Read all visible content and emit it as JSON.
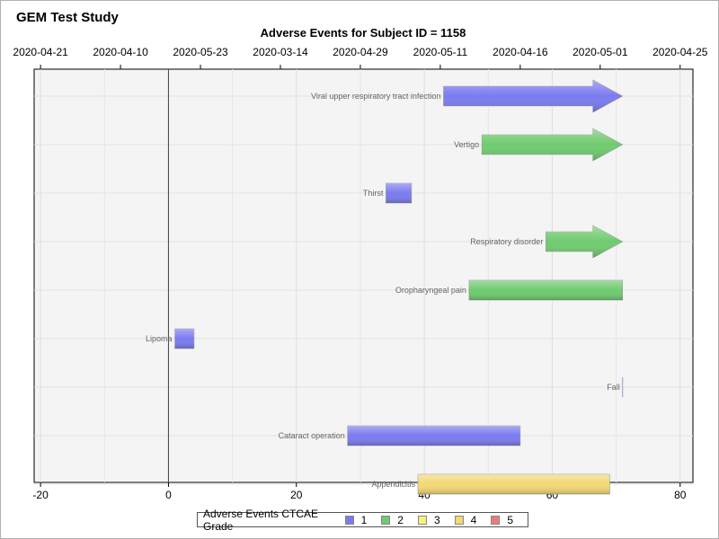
{
  "page": {
    "study_title": "GEM Test Study"
  },
  "chart_data": {
    "type": "bar",
    "title": "Adverse Events for Subject ID = 1158",
    "x_bottom_ticks": [
      -20,
      0,
      20,
      40,
      60,
      80
    ],
    "x_top_labels": [
      "2020-04-21",
      "2020-04-10",
      "2020-05-23",
      "2020-03-14",
      "2020-04-29",
      "2020-05-11",
      "2020-04-16",
      "2020-05-01",
      "2020-04-25"
    ],
    "xlim": [
      -21,
      82
    ],
    "reference_line_x": 0,
    "grid": true,
    "colors": {
      "1": "#7b7bf0",
      "2": "#6fcb6f",
      "3": "#f7f27a",
      "4": "#f3d873",
      "5": "#ef7a7a"
    },
    "events": [
      {
        "label": "Viral upper respiratory tract infection",
        "start": 43,
        "end": 71,
        "grade": 1,
        "ongoing": true
      },
      {
        "label": "Vertigo",
        "start": 49,
        "end": 71,
        "grade": 2,
        "ongoing": true
      },
      {
        "label": "Thirst",
        "start": 34,
        "end": 38,
        "grade": 1,
        "ongoing": false
      },
      {
        "label": "Respiratory disorder",
        "start": 59,
        "end": 71,
        "grade": 2,
        "ongoing": true
      },
      {
        "label": "Oropharyngeal pain",
        "start": 47,
        "end": 71,
        "grade": 2,
        "ongoing": false
      },
      {
        "label": "Lipoma",
        "start": 1,
        "end": 4,
        "grade": 1,
        "ongoing": false
      },
      {
        "label": "Fall",
        "start": 71,
        "end": 71,
        "grade": 1,
        "ongoing": false
      },
      {
        "label": "Cataract operation",
        "start": 28,
        "end": 55,
        "grade": 1,
        "ongoing": false
      },
      {
        "label": "Appendicitis",
        "start": 39,
        "end": 69,
        "grade": 4,
        "ongoing": false
      }
    ],
    "legend": {
      "title": "Adverse Events CTCAE Grade",
      "position": "bottom",
      "items": [
        {
          "label": "1",
          "color": "#7b7bf0"
        },
        {
          "label": "2",
          "color": "#6fcb6f"
        },
        {
          "label": "3",
          "color": "#f7f27a"
        },
        {
          "label": "4",
          "color": "#f3d873"
        },
        {
          "label": "5",
          "color": "#ef7a7a"
        }
      ]
    }
  }
}
